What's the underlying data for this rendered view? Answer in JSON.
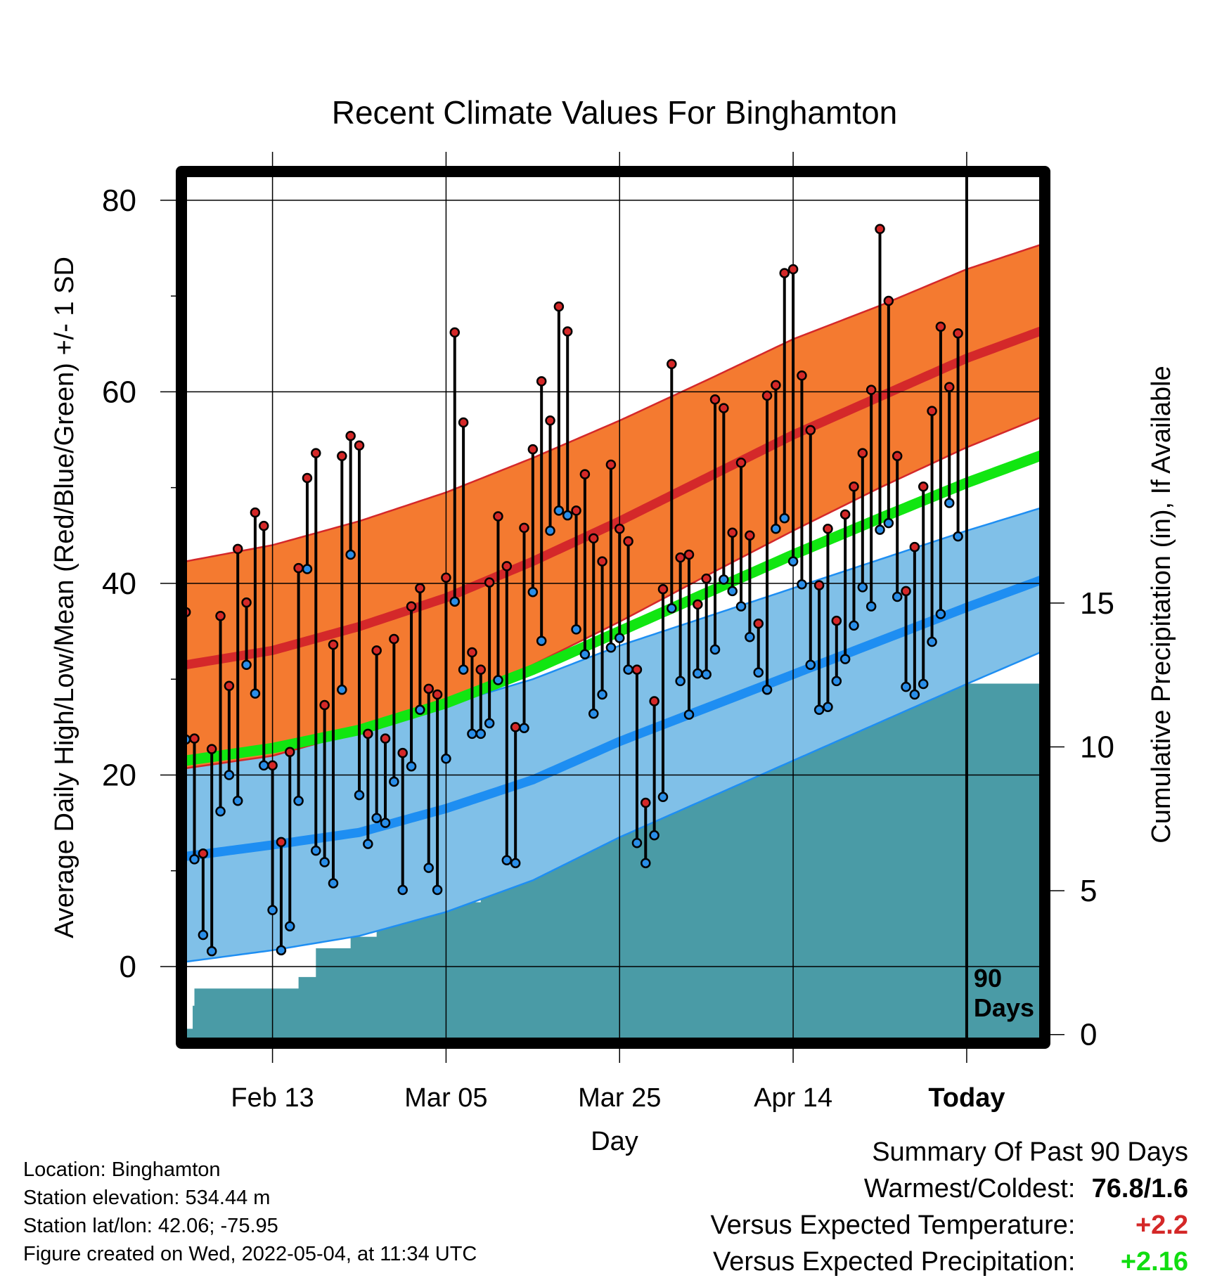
{
  "chart_data": {
    "type": "line",
    "title": "Recent Climate Values For Binghamton",
    "xlabel": "Day",
    "ylabel": "Average Daily High/Low/Mean (Red/Blue/Green) +/- 1 SD",
    "y2label": "Cumulative Precipitation (in), If Available",
    "ylim": [
      -8,
      83
    ],
    "y2lim": [
      -0.3,
      30
    ],
    "y_ticks": [
      0,
      20,
      40,
      60,
      80
    ],
    "y2_ticks": [
      0,
      5,
      10,
      15
    ],
    "xlim": [
      -10.5,
      89
    ],
    "x_ticks": [
      {
        "day": 0,
        "label": "Feb 13"
      },
      {
        "day": 20,
        "label": "Mar 05"
      },
      {
        "day": 40,
        "label": "Mar 25"
      },
      {
        "day": 60,
        "label": "Apr 14"
      },
      {
        "day": 80,
        "label": "Today"
      }
    ],
    "grid": true,
    "today_marker": {
      "day": 80,
      "label_line1": "90",
      "label_line2": "Days"
    },
    "normal_high": {
      "days": [
        -10,
        0,
        10,
        20,
        30,
        40,
        50,
        60,
        70,
        80,
        89
      ],
      "mean": [
        31.5,
        33,
        35.5,
        38.5,
        42.3,
        46.5,
        51,
        55.5,
        59.5,
        63.5,
        66.5
      ],
      "sd": [
        10.8,
        11,
        11,
        11,
        10.8,
        10.5,
        10.2,
        10,
        9.5,
        9.3,
        9
      ]
    },
    "normal_low": {
      "days": [
        -10,
        0,
        10,
        20,
        30,
        40,
        50,
        60,
        70,
        80,
        89
      ],
      "mean": [
        11.5,
        12.7,
        14,
        16.5,
        19.5,
        23.5,
        27,
        30.5,
        34,
        37.5,
        40.5
      ],
      "sd": [
        11,
        11,
        10.8,
        10.8,
        10.5,
        10,
        9.5,
        9,
        8.5,
        8,
        7.5
      ]
    },
    "normal_mean": {
      "days": [
        -10,
        0,
        10,
        20,
        30,
        40,
        50,
        60,
        70,
        80,
        89
      ],
      "values": [
        21.5,
        22.8,
        24.7,
        27.5,
        31,
        35,
        39,
        43,
        46.8,
        50.5,
        53.5
      ]
    },
    "daily_high": [
      37,
      23.8,
      11.8,
      22.7,
      36.6,
      29.3,
      43.6,
      38,
      47.4,
      46,
      21,
      13,
      22.4,
      41.6,
      51,
      53.6,
      27.3,
      33.6,
      53.3,
      55.4,
      54.4,
      24.3,
      33,
      23.8,
      34.2,
      22.3,
      37.6,
      39.5,
      29,
      28.4,
      40.6,
      66.2,
      56.8,
      32.8,
      31,
      40.1,
      47,
      41.8,
      25,
      45.8,
      54,
      61.1,
      57,
      68.9,
      66.3,
      47.6,
      51.4,
      44.7,
      42.3,
      52.4,
      45.7,
      44.4,
      31,
      17.1,
      27.7,
      39.4,
      62.9,
      42.7,
      43,
      37.8,
      40.5,
      59.2,
      58.3,
      45.3,
      52.6,
      45,
      35.8,
      59.6,
      60.7,
      72.4,
      72.8,
      61.7,
      56,
      39.8,
      45.7,
      36.1,
      47.2,
      50.1,
      53.6,
      60.2,
      77,
      69.5,
      53.3,
      39.2,
      43.8,
      50.1,
      58,
      66.8,
      60.5,
      66.1
    ],
    "daily_low": [
      23.7,
      11.2,
      3.3,
      1.6,
      16.2,
      20,
      17.3,
      31.5,
      28.5,
      21,
      5.9,
      1.7,
      4.2,
      17.3,
      41.5,
      12.1,
      10.9,
      8.7,
      28.9,
      43,
      17.9,
      12.8,
      15.5,
      15,
      19.3,
      8,
      20.9,
      26.8,
      10.3,
      8,
      21.7,
      38.1,
      31,
      24.3,
      24.3,
      25.4,
      29.9,
      11.1,
      10.8,
      24.9,
      39.1,
      34,
      45.5,
      47.6,
      47.1,
      35.2,
      32.6,
      26.4,
      28.4,
      33.3,
      34.3,
      31,
      12.9,
      10.8,
      13.7,
      17.7,
      37.4,
      29.8,
      26.3,
      30.6,
      30.5,
      33.1,
      40.4,
      39.2,
      37.6,
      34.4,
      30.7,
      28.9,
      45.7,
      46.8,
      42.3,
      39.9,
      31.5,
      26.8,
      27.1,
      29.8,
      32.1,
      35.6,
      39.6,
      37.6,
      45.6,
      46.3,
      38.6,
      29.2,
      28.4,
      29.5,
      33.9,
      36.8,
      48.4,
      44.9
    ],
    "daily_start_day": -10,
    "precip_cum": {
      "days": [
        -10,
        -9.2,
        -9,
        -3,
        -2,
        0,
        2.5,
        3,
        5,
        7,
        9,
        10,
        12,
        13,
        18,
        19,
        20,
        22,
        24,
        25,
        27,
        28,
        30,
        33,
        34,
        37,
        38,
        39,
        41,
        44,
        44.8,
        46,
        47,
        49,
        50,
        50.8,
        52,
        54,
        60,
        61,
        62,
        63,
        64,
        65,
        67,
        70,
        71,
        73,
        75,
        77,
        79,
        89
      ],
      "values": [
        0.2,
        1.0,
        1.6,
        1.6,
        1.6,
        1.6,
        1.6,
        2.0,
        3.0,
        3.0,
        3.4,
        3.4,
        4.2,
        4.2,
        4.4,
        4.4,
        4.6,
        4.6,
        5.5,
        5.5,
        5.9,
        6.0,
        6.7,
        6.7,
        7.0,
        7.0,
        7.2,
        7.4,
        7.4,
        7.6,
        7.9,
        7.9,
        8.2,
        8.4,
        9.4,
        9.5,
        9.5,
        9.7,
        10.2,
        10.3,
        10.6,
        11.2,
        11.2,
        11.9,
        11.9,
        12.0,
        12.0,
        12.1,
        12.2,
        12.2,
        12.2,
        12.2
      ]
    },
    "colors": {
      "high_band": "#f47a30",
      "high_line": "#d4282a",
      "low_band": "#80c0e8",
      "low_line": "#1e8ef2",
      "mean_line": "#11e611",
      "precip": "#4a9ba6",
      "high_dot": "#d42828",
      "low_dot": "#2a8ee8"
    }
  },
  "info": {
    "location": "Location: Binghamton",
    "elevation": "Station elevation: 534.44 m",
    "latlon": "Station lat/lon: 42.06; -75.95",
    "created": "Figure created on Wed, 2022-05-04, at 11:34 UTC"
  },
  "summary": {
    "title": "Summary Of Past 90 Days",
    "warm_cold_label": "Warmest/Coldest:",
    "warm_cold_value": "76.8/1.6",
    "temp_label": "Versus Expected Temperature:",
    "temp_value": "+2.2",
    "temp_color": "#d42828",
    "precip_label": "Versus Expected Precipitation:",
    "precip_value": "+2.16",
    "precip_color": "#11dd11"
  }
}
